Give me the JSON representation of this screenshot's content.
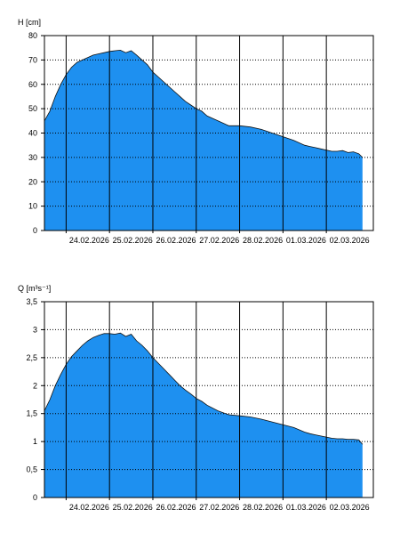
{
  "chart_data": [
    {
      "type": "area",
      "ylabel": "H [cm]",
      "ylim": [
        0,
        80
      ],
      "yticks": [
        0,
        10,
        20,
        30,
        40,
        50,
        60,
        70,
        80
      ],
      "ytick_labels": [
        "0",
        "10",
        "20",
        "30",
        "40",
        "50",
        "60",
        "70",
        "80"
      ],
      "xlim": [
        "2026-02-23T12:00",
        "2026-03-03T02:00"
      ],
      "xticks": [
        "2026-02-24",
        "2026-02-25",
        "2026-02-26",
        "2026-02-27",
        "2026-02-28",
        "2026-03-01",
        "2026-03-02"
      ],
      "xtick_labels": [
        "24.02.2026",
        "25.02.2026",
        "26.02.2026",
        "27.02.2026",
        "28.02.2026",
        "01.03.2026",
        "02.03.2026"
      ],
      "grid": "vertical solid at day boundaries, horizontal dotted",
      "fill_color": "#1E90F0",
      "series": [
        {
          "x": [
            "2026-02-23T12:00",
            "2026-02-23T15:00",
            "2026-02-23T18:00",
            "2026-02-23T21:00",
            "2026-02-24T00:00",
            "2026-02-24T03:00",
            "2026-02-24T06:00",
            "2026-02-24T09:00",
            "2026-02-24T12:00",
            "2026-02-24T15:00",
            "2026-02-24T18:00",
            "2026-02-24T21:00",
            "2026-02-25T00:00",
            "2026-02-25T03:00",
            "2026-02-25T06:00",
            "2026-02-25T09:00",
            "2026-02-25T12:00",
            "2026-02-25T15:00",
            "2026-02-25T18:00",
            "2026-02-25T21:00",
            "2026-02-26T00:00",
            "2026-02-26T03:00",
            "2026-02-26T06:00",
            "2026-02-26T09:00",
            "2026-02-26T12:00",
            "2026-02-26T15:00",
            "2026-02-26T18:00",
            "2026-02-26T21:00",
            "2026-02-27T00:00",
            "2026-02-27T03:00",
            "2026-02-27T06:00",
            "2026-02-27T12:00",
            "2026-02-27T18:00",
            "2026-02-28T00:00",
            "2026-02-28T06:00",
            "2026-02-28T12:00",
            "2026-02-28T18:00",
            "2026-03-01T00:00",
            "2026-03-01T06:00",
            "2026-03-01T12:00",
            "2026-03-01T15:00",
            "2026-03-01T18:00",
            "2026-03-01T21:00",
            "2026-03-02T00:00",
            "2026-03-02T03:00",
            "2026-03-02T06:00",
            "2026-03-02T09:00",
            "2026-03-02T12:00",
            "2026-03-02T15:00",
            "2026-03-02T18:00",
            "2026-03-02T20:00"
          ],
          "y": [
            45,
            49,
            55,
            60,
            64,
            67,
            69,
            70,
            71,
            72,
            72.5,
            73,
            73.5,
            73.8,
            74,
            73,
            73.8,
            72,
            70,
            68,
            65,
            63,
            61,
            59,
            57,
            55,
            53,
            51.5,
            50,
            49,
            47,
            45,
            43,
            43,
            42.5,
            41.5,
            40,
            38.5,
            37,
            35,
            34.5,
            34,
            33.5,
            33,
            32.5,
            32.5,
            32.8,
            32,
            32.3,
            31.5,
            30
          ]
        }
      ]
    },
    {
      "type": "area",
      "ylabel": "Q [m³s⁻¹]",
      "ylim": [
        0,
        3.5
      ],
      "yticks": [
        0,
        0.5,
        1,
        1.5,
        2,
        2.5,
        3,
        3.5
      ],
      "ytick_labels": [
        "0",
        "0,5",
        "1",
        "1,5",
        "2",
        "2,5",
        "3",
        "3,5"
      ],
      "xlim": [
        "2026-02-23T12:00",
        "2026-03-03T02:00"
      ],
      "xticks": [
        "2026-02-24",
        "2026-02-25",
        "2026-02-26",
        "2026-02-27",
        "2026-02-28",
        "2026-03-01",
        "2026-03-02"
      ],
      "xtick_labels": [
        "24.02.2026",
        "25.02.2026",
        "26.02.2026",
        "27.02.2026",
        "28.02.2026",
        "01.03.2026",
        "02.03.2026"
      ],
      "grid": "vertical solid at day boundaries, horizontal dotted",
      "fill_color": "#1E90F0",
      "series": [
        {
          "x": [
            "2026-02-23T12:00",
            "2026-02-23T15:00",
            "2026-02-23T18:00",
            "2026-02-23T21:00",
            "2026-02-24T00:00",
            "2026-02-24T03:00",
            "2026-02-24T06:00",
            "2026-02-24T09:00",
            "2026-02-24T12:00",
            "2026-02-24T15:00",
            "2026-02-24T18:00",
            "2026-02-24T21:00",
            "2026-02-25T00:00",
            "2026-02-25T03:00",
            "2026-02-25T06:00",
            "2026-02-25T09:00",
            "2026-02-25T12:00",
            "2026-02-25T15:00",
            "2026-02-25T18:00",
            "2026-02-25T21:00",
            "2026-02-26T00:00",
            "2026-02-26T03:00",
            "2026-02-26T06:00",
            "2026-02-26T09:00",
            "2026-02-26T12:00",
            "2026-02-26T15:00",
            "2026-02-26T18:00",
            "2026-02-26T21:00",
            "2026-02-27T00:00",
            "2026-02-27T03:00",
            "2026-02-27T06:00",
            "2026-02-27T12:00",
            "2026-02-27T18:00",
            "2026-02-28T00:00",
            "2026-02-28T06:00",
            "2026-02-28T12:00",
            "2026-02-28T18:00",
            "2026-03-01T00:00",
            "2026-03-01T06:00",
            "2026-03-01T12:00",
            "2026-03-01T15:00",
            "2026-03-01T18:00",
            "2026-03-01T21:00",
            "2026-03-02T00:00",
            "2026-03-02T03:00",
            "2026-03-02T06:00",
            "2026-03-02T09:00",
            "2026-03-02T12:00",
            "2026-03-02T15:00",
            "2026-03-02T18:00",
            "2026-03-02T20:00"
          ],
          "y": [
            1.55,
            1.75,
            2.0,
            2.2,
            2.38,
            2.52,
            2.62,
            2.72,
            2.8,
            2.86,
            2.9,
            2.93,
            2.93,
            2.92,
            2.94,
            2.88,
            2.92,
            2.8,
            2.72,
            2.62,
            2.5,
            2.4,
            2.3,
            2.2,
            2.1,
            2.0,
            1.92,
            1.85,
            1.77,
            1.72,
            1.65,
            1.55,
            1.48,
            1.46,
            1.44,
            1.4,
            1.35,
            1.3,
            1.25,
            1.17,
            1.14,
            1.12,
            1.1,
            1.08,
            1.06,
            1.05,
            1.05,
            1.04,
            1.04,
            1.03,
            0.95
          ]
        }
      ]
    }
  ]
}
